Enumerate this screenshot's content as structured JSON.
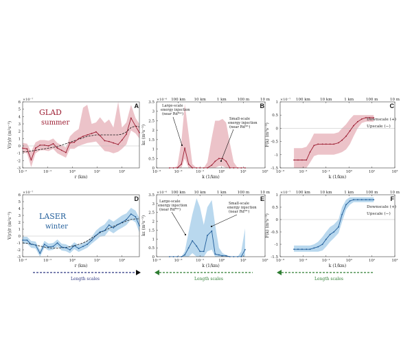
{
  "colors": {
    "summer_line": "#9b1b30",
    "summer_band": "#ecc3c9",
    "winter_line": "#1f5c99",
    "winter_band": "#b9d8ee",
    "arrow_right": "#2b3580",
    "arrow_left": "#2e7d32",
    "scale_text": "#2e7d32"
  },
  "labels": {
    "glad": "GLAD",
    "summer": "summer",
    "laser": "LASER",
    "winter": "winter",
    "length_scales": "Length scales",
    "downscale": "Downscale (+)",
    "upscale": "Upscale (−)",
    "exp_vr": "×10⁻⁷",
    "exp_k": "×10⁻⁶",
    "top_scales": [
      "100 km",
      "10 km",
      "1 km",
      "100 m",
      "10 m"
    ],
    "ylabel_v": "V(r)/r (m²s⁻³)",
    "ylabel_ks": "kε (m²s⁻³)",
    "ylabel_F": "F(k) (m²s⁻³)",
    "xlabel_r": "r (km)",
    "xlabel_k": "k (1/km)",
    "ann_large": [
      "Large-scale",
      "energy injection",
      "(near Rdᴮᵃˢ)"
    ],
    "ann_small": [
      "Small-scale",
      "energy injection",
      "(near Rdᴹᴸ)"
    ]
  },
  "chart_data": [
    {
      "id": "A",
      "type": "line",
      "campaign": "GLAD",
      "season": "summer",
      "xscale": "log",
      "xlim": [
        0.01,
        500
      ],
      "ylim": [
        -3,
        6
      ],
      "xticks": [
        0.01,
        0.1,
        1,
        10,
        100
      ],
      "xtick_labels": [
        "10⁻²",
        "10⁻¹",
        "10⁰",
        "10¹",
        "10²"
      ],
      "yticks": [
        -3,
        -2,
        -1,
        0,
        1,
        2,
        3,
        4,
        5,
        6
      ],
      "exponent": "×10⁻⁷",
      "xlabel": "r (km)",
      "ylabel": "V(r)/r (m²s⁻³)",
      "x": [
        0.01,
        0.015,
        0.022,
        0.033,
        0.05,
        0.075,
        0.11,
        0.17,
        0.25,
        0.37,
        0.55,
        0.8,
        1.2,
        1.8,
        2.7,
        4,
        6,
        9,
        13,
        20,
        30,
        45,
        70,
        100,
        150,
        230,
        350,
        500
      ],
      "y": [
        -0.3,
        -0.4,
        -1.9,
        -0.3,
        0.1,
        0.1,
        0.0,
        0.3,
        -0.3,
        -0.6,
        -0.9,
        0.4,
        0.5,
        1.0,
        1.3,
        1.5,
        1.7,
        1.9,
        1.4,
        0.7,
        0.6,
        0.4,
        0.2,
        0.8,
        1.6,
        3.8,
        2.7,
        1.8
      ],
      "trend": [
        -0.8,
        -0.8,
        -0.7,
        -0.6,
        -0.5,
        -0.4,
        -0.3,
        -0.2,
        -0.1,
        0.1,
        0.3,
        0.5,
        0.7,
        0.9,
        1.1,
        1.3,
        1.4,
        1.5,
        1.5,
        1.5,
        1.5,
        1.5,
        1.5,
        1.6,
        1.9,
        2.5,
        2.7,
        2.6
      ],
      "band_low": [
        -0.9,
        -1.0,
        -2.9,
        -1.0,
        -0.6,
        -0.6,
        -0.7,
        -0.4,
        -1.0,
        -1.3,
        -1.6,
        -0.4,
        -0.4,
        0.0,
        0.2,
        0.4,
        0.5,
        0.6,
        0.0,
        -0.7,
        -0.8,
        -1.0,
        -0.8,
        -0.4,
        0.2,
        2.1,
        1.7,
        1.0
      ],
      "band_high": [
        0.4,
        0.3,
        -0.8,
        0.5,
        0.8,
        0.8,
        0.7,
        1.0,
        0.4,
        0.1,
        -0.2,
        1.3,
        1.9,
        2.3,
        5.2,
        5.6,
        3.0,
        3.2,
        3.9,
        3.1,
        3.6,
        2.5,
        6.0,
        2.5,
        3.2,
        5.6,
        3.8,
        3.0
      ]
    },
    {
      "id": "B",
      "type": "line",
      "campaign": "GLAD",
      "season": "summer",
      "xscale": "log",
      "xlim": [
        0.001,
        100
      ],
      "ylim": [
        0,
        3.5
      ],
      "xticks": [
        0.001,
        0.01,
        0.1,
        1,
        10,
        100
      ],
      "xtick_labels": [
        "10⁻³",
        "10⁻²",
        "10⁻¹",
        "10⁰",
        "10¹",
        "10²"
      ],
      "yticks": [
        0,
        0.5,
        1,
        1.5,
        2,
        2.5,
        3,
        3.5
      ],
      "exponent": "×10⁻⁶",
      "xlabel": "k (1/km)",
      "ylabel": "kε (m²s⁻³)",
      "x": [
        0.004,
        0.006,
        0.009,
        0.014,
        0.02,
        0.03,
        0.045,
        0.07,
        0.1,
        0.15,
        0.22,
        0.35,
        0.5,
        0.75,
        1.1,
        1.6,
        2.4,
        3.6,
        5.5,
        8,
        12
      ],
      "y": [
        0,
        0,
        0,
        0.2,
        1.05,
        0.2,
        0,
        0,
        0,
        0,
        0,
        0.15,
        0.35,
        0.5,
        0.5,
        0.35,
        0,
        0,
        0,
        0,
        0
      ],
      "band_low": [
        0,
        0,
        0,
        0,
        0.5,
        0,
        0,
        0,
        0,
        0,
        0,
        0,
        0,
        0.1,
        0.1,
        0,
        0,
        0,
        0,
        0,
        0
      ],
      "band_high": [
        0,
        0,
        0.1,
        1.4,
        3.4,
        1.8,
        0.2,
        0,
        0,
        0,
        0.3,
        1.6,
        2.5,
        2.5,
        2.6,
        2.4,
        1.3,
        0.3,
        0,
        0,
        0
      ]
    },
    {
      "id": "C",
      "type": "line",
      "campaign": "GLAD",
      "season": "summer",
      "xscale": "log",
      "xlim": [
        0.001,
        100
      ],
      "ylim": [
        -1.5,
        1
      ],
      "xticks": [
        0.001,
        0.01,
        0.1,
        1,
        10,
        100
      ],
      "xtick_labels": [
        "10⁻³",
        "10⁻²",
        "10⁻¹",
        "10⁰",
        "10¹",
        "10²"
      ],
      "yticks": [
        -1.5,
        -1,
        -0.5,
        0,
        0.5,
        1
      ],
      "exponent": "×10⁻⁷",
      "xlabel": "k (1/km)",
      "ylabel": "F(k) (m²s⁻³)",
      "x": [
        0.004,
        0.006,
        0.009,
        0.014,
        0.02,
        0.03,
        0.045,
        0.07,
        0.1,
        0.15,
        0.22,
        0.35,
        0.5,
        0.75,
        1.1,
        1.6,
        2.4,
        3.6,
        5.5,
        8,
        12
      ],
      "y": [
        -1.2,
        -1.2,
        -1.2,
        -1.2,
        -0.9,
        -0.65,
        -0.6,
        -0.6,
        -0.6,
        -0.6,
        -0.6,
        -0.55,
        -0.45,
        -0.3,
        -0.1,
        0.1,
        0.25,
        0.35,
        0.4,
        0.4,
        0.4
      ],
      "band_low": [
        -1.5,
        -1.5,
        -1.5,
        -1.5,
        -1.3,
        -1.05,
        -1.0,
        -1.0,
        -1.0,
        -1.0,
        -1.0,
        -0.95,
        -0.9,
        -0.8,
        -0.6,
        -0.3,
        0.0,
        0.2,
        0.25,
        0.25,
        0.25
      ],
      "band_high": [
        -0.75,
        -0.75,
        -0.75,
        -0.7,
        -0.5,
        -0.2,
        -0.2,
        -0.2,
        -0.2,
        -0.2,
        -0.2,
        -0.15,
        0.0,
        0.15,
        0.35,
        0.5,
        0.5,
        0.5,
        0.5,
        0.5,
        0.5
      ]
    },
    {
      "id": "D",
      "type": "line",
      "campaign": "LASER",
      "season": "winter",
      "xscale": "log",
      "xlim": [
        0.01,
        500
      ],
      "ylim": [
        -3,
        6
      ],
      "xticks": [
        0.01,
        0.1,
        1,
        10,
        100
      ],
      "xtick_labels": [
        "10⁻²",
        "10⁻¹",
        "10⁰",
        "10¹",
        "10²"
      ],
      "yticks": [
        -3,
        -2,
        -1,
        0,
        1,
        2,
        3,
        4,
        5,
        6
      ],
      "exponent": "×10⁻⁷",
      "xlabel": "r (km)",
      "ylabel": "V(r)/r (m²s⁻³)",
      "x": [
        0.01,
        0.015,
        0.022,
        0.033,
        0.05,
        0.075,
        0.11,
        0.17,
        0.25,
        0.37,
        0.55,
        0.8,
        1.2,
        1.8,
        2.7,
        4,
        6,
        9,
        13,
        20,
        30,
        45,
        70,
        100,
        150,
        230,
        350,
        500
      ],
      "y": [
        -0.6,
        -0.6,
        -1.2,
        -1.3,
        -2.5,
        -1.2,
        -1.6,
        -1.5,
        -1.0,
        -1.6,
        -1.7,
        -2.0,
        -1.4,
        -1.8,
        -1.5,
        -1.2,
        -0.6,
        0.1,
        0.6,
        0.8,
        1.6,
        1.2,
        1.7,
        2.0,
        2.4,
        3.2,
        2.8,
        1.5
      ],
      "trend": [
        -1.0,
        -1.05,
        -1.15,
        -1.3,
        -1.45,
        -1.6,
        -1.7,
        -1.75,
        -1.75,
        -1.7,
        -1.65,
        -1.55,
        -1.4,
        -1.2,
        -1.0,
        -0.7,
        -0.3,
        0.1,
        0.5,
        0.8,
        1.1,
        1.4,
        1.7,
        1.9,
        2.2,
        2.4,
        2.5,
        2.5
      ],
      "band_low": [
        -1.1,
        -1.1,
        -1.7,
        -1.8,
        -3.0,
        -1.7,
        -2.1,
        -2.0,
        -1.5,
        -2.1,
        -2.2,
        -2.5,
        -1.9,
        -2.3,
        -2.0,
        -1.7,
        -1.1,
        -0.6,
        -0.1,
        0.0,
        0.8,
        0.4,
        0.9,
        1.2,
        1.6,
        2.4,
        2.0,
        0.5
      ],
      "band_high": [
        -0.1,
        -0.1,
        -0.7,
        -0.8,
        -2.0,
        -0.7,
        -1.1,
        -1.0,
        -0.5,
        -1.1,
        -1.2,
        -1.5,
        -0.9,
        -1.3,
        -1.0,
        -0.7,
        -0.1,
        0.8,
        1.3,
        1.7,
        2.5,
        2.1,
        2.6,
        3.0,
        3.3,
        4.1,
        3.7,
        2.6
      ]
    },
    {
      "id": "E",
      "type": "line",
      "campaign": "LASER",
      "season": "winter",
      "xscale": "log",
      "xlim": [
        0.001,
        100
      ],
      "ylim": [
        0,
        3.5
      ],
      "xticks": [
        0.001,
        0.01,
        0.1,
        1,
        10,
        100
      ],
      "xtick_labels": [
        "10⁻³",
        "10⁻²",
        "10⁻¹",
        "10⁰",
        "10¹",
        "10²"
      ],
      "yticks": [
        0,
        0.5,
        1,
        1.5,
        2,
        2.5,
        3,
        3.5
      ],
      "exponent": "×10⁻⁶",
      "xlabel": "k (1/km)",
      "ylabel": "kε (m²s⁻³)",
      "x": [
        0.004,
        0.006,
        0.009,
        0.014,
        0.02,
        0.03,
        0.045,
        0.07,
        0.1,
        0.15,
        0.22,
        0.35,
        0.5,
        0.75,
        1.1,
        1.6,
        2.4,
        3.6,
        5.5,
        8,
        12
      ],
      "y": [
        0,
        0,
        0,
        0,
        0.1,
        0.5,
        0.9,
        0.6,
        0.3,
        0.3,
        1.2,
        1.45,
        0.15,
        0.1,
        0.05,
        0.05,
        0,
        0,
        0,
        0,
        0.4
      ],
      "band_low": [
        0,
        0,
        0,
        0,
        0,
        0,
        0.2,
        0,
        0,
        0,
        0.3,
        0.4,
        0,
        0,
        0,
        0,
        0,
        0,
        0,
        0,
        0
      ],
      "band_high": [
        0,
        0,
        0,
        0,
        0.3,
        1.4,
        2.4,
        3.3,
        2.8,
        1.8,
        2.8,
        3.2,
        1.8,
        0.5,
        0.2,
        0.1,
        0,
        0,
        0,
        0.3,
        1.6
      ]
    },
    {
      "id": "F",
      "type": "line",
      "campaign": "LASER",
      "season": "winter",
      "xscale": "log",
      "xlim": [
        0.001,
        100
      ],
      "ylim": [
        -1.5,
        1
      ],
      "xticks": [
        0.001,
        0.01,
        0.1,
        1,
        10,
        100
      ],
      "xtick_labels": [
        "10⁻³",
        "10⁻²",
        "10⁻¹",
        "10⁰",
        "10¹",
        "10²"
      ],
      "yticks": [
        -1.5,
        -1,
        -0.5,
        0,
        0.5,
        1
      ],
      "exponent": "×10⁻⁷",
      "xlabel": "k (1/km)",
      "ylabel": "F(k) (m²s⁻³)",
      "x": [
        0.004,
        0.006,
        0.009,
        0.014,
        0.02,
        0.03,
        0.045,
        0.07,
        0.1,
        0.15,
        0.22,
        0.35,
        0.5,
        0.75,
        1.1,
        1.6,
        2.4,
        3.6,
        5.5,
        8,
        12
      ],
      "y": [
        -1.2,
        -1.2,
        -1.2,
        -1.2,
        -1.2,
        -1.15,
        -1.1,
        -1.0,
        -0.8,
        -0.6,
        -0.5,
        -0.3,
        0.2,
        0.6,
        0.75,
        0.8,
        0.8,
        0.8,
        0.8,
        0.8,
        0.8
      ],
      "band_low": [
        -1.3,
        -1.3,
        -1.3,
        -1.3,
        -1.3,
        -1.3,
        -1.3,
        -1.25,
        -1.1,
        -0.9,
        -0.75,
        -0.55,
        -0.1,
        0.4,
        0.6,
        0.7,
        0.7,
        0.7,
        0.7,
        0.7,
        0.7
      ],
      "band_high": [
        -1.05,
        -1.05,
        -1.05,
        -1.05,
        -1.05,
        -1.0,
        -0.9,
        -0.7,
        -0.5,
        -0.3,
        -0.2,
        0.0,
        0.5,
        0.8,
        0.9,
        0.9,
        0.9,
        0.9,
        0.9,
        0.9,
        0.9
      ]
    }
  ]
}
